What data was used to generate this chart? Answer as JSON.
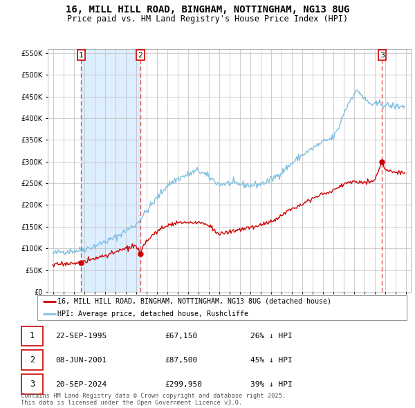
{
  "title_line1": "16, MILL HILL ROAD, BINGHAM, NOTTINGHAM, NG13 8UG",
  "title_line2": "Price paid vs. HM Land Registry's House Price Index (HPI)",
  "legend_line1": "16, MILL HILL ROAD, BINGHAM, NOTTINGHAM, NG13 8UG (detached house)",
  "legend_line2": "HPI: Average price, detached house, Rushcliffe",
  "footer": "Contains HM Land Registry data © Crown copyright and database right 2025.\nThis data is licensed under the Open Government Licence v3.0.",
  "transactions": [
    {
      "num": 1,
      "date": "22-SEP-1995",
      "date_x": 1995.73,
      "price": 67150,
      "pct": "26% ↓ HPI"
    },
    {
      "num": 2,
      "date": "08-JUN-2001",
      "date_x": 2001.44,
      "price": 87500,
      "pct": "45% ↓ HPI"
    },
    {
      "num": 3,
      "date": "20-SEP-2024",
      "date_x": 2024.73,
      "price": 299950,
      "pct": "39% ↓ HPI"
    }
  ],
  "ylim": [
    0,
    560000
  ],
  "ytick_max": 550000,
  "ytick_step": 50000,
  "xlim_start": 1992.5,
  "xlim_end": 2027.5,
  "hpi_color": "#7fbfdf",
  "price_color": "#cc0000",
  "fill_color": "#ddeeff",
  "grid_color": "#bbbbbb",
  "dashed_line_color": "#dd4444"
}
